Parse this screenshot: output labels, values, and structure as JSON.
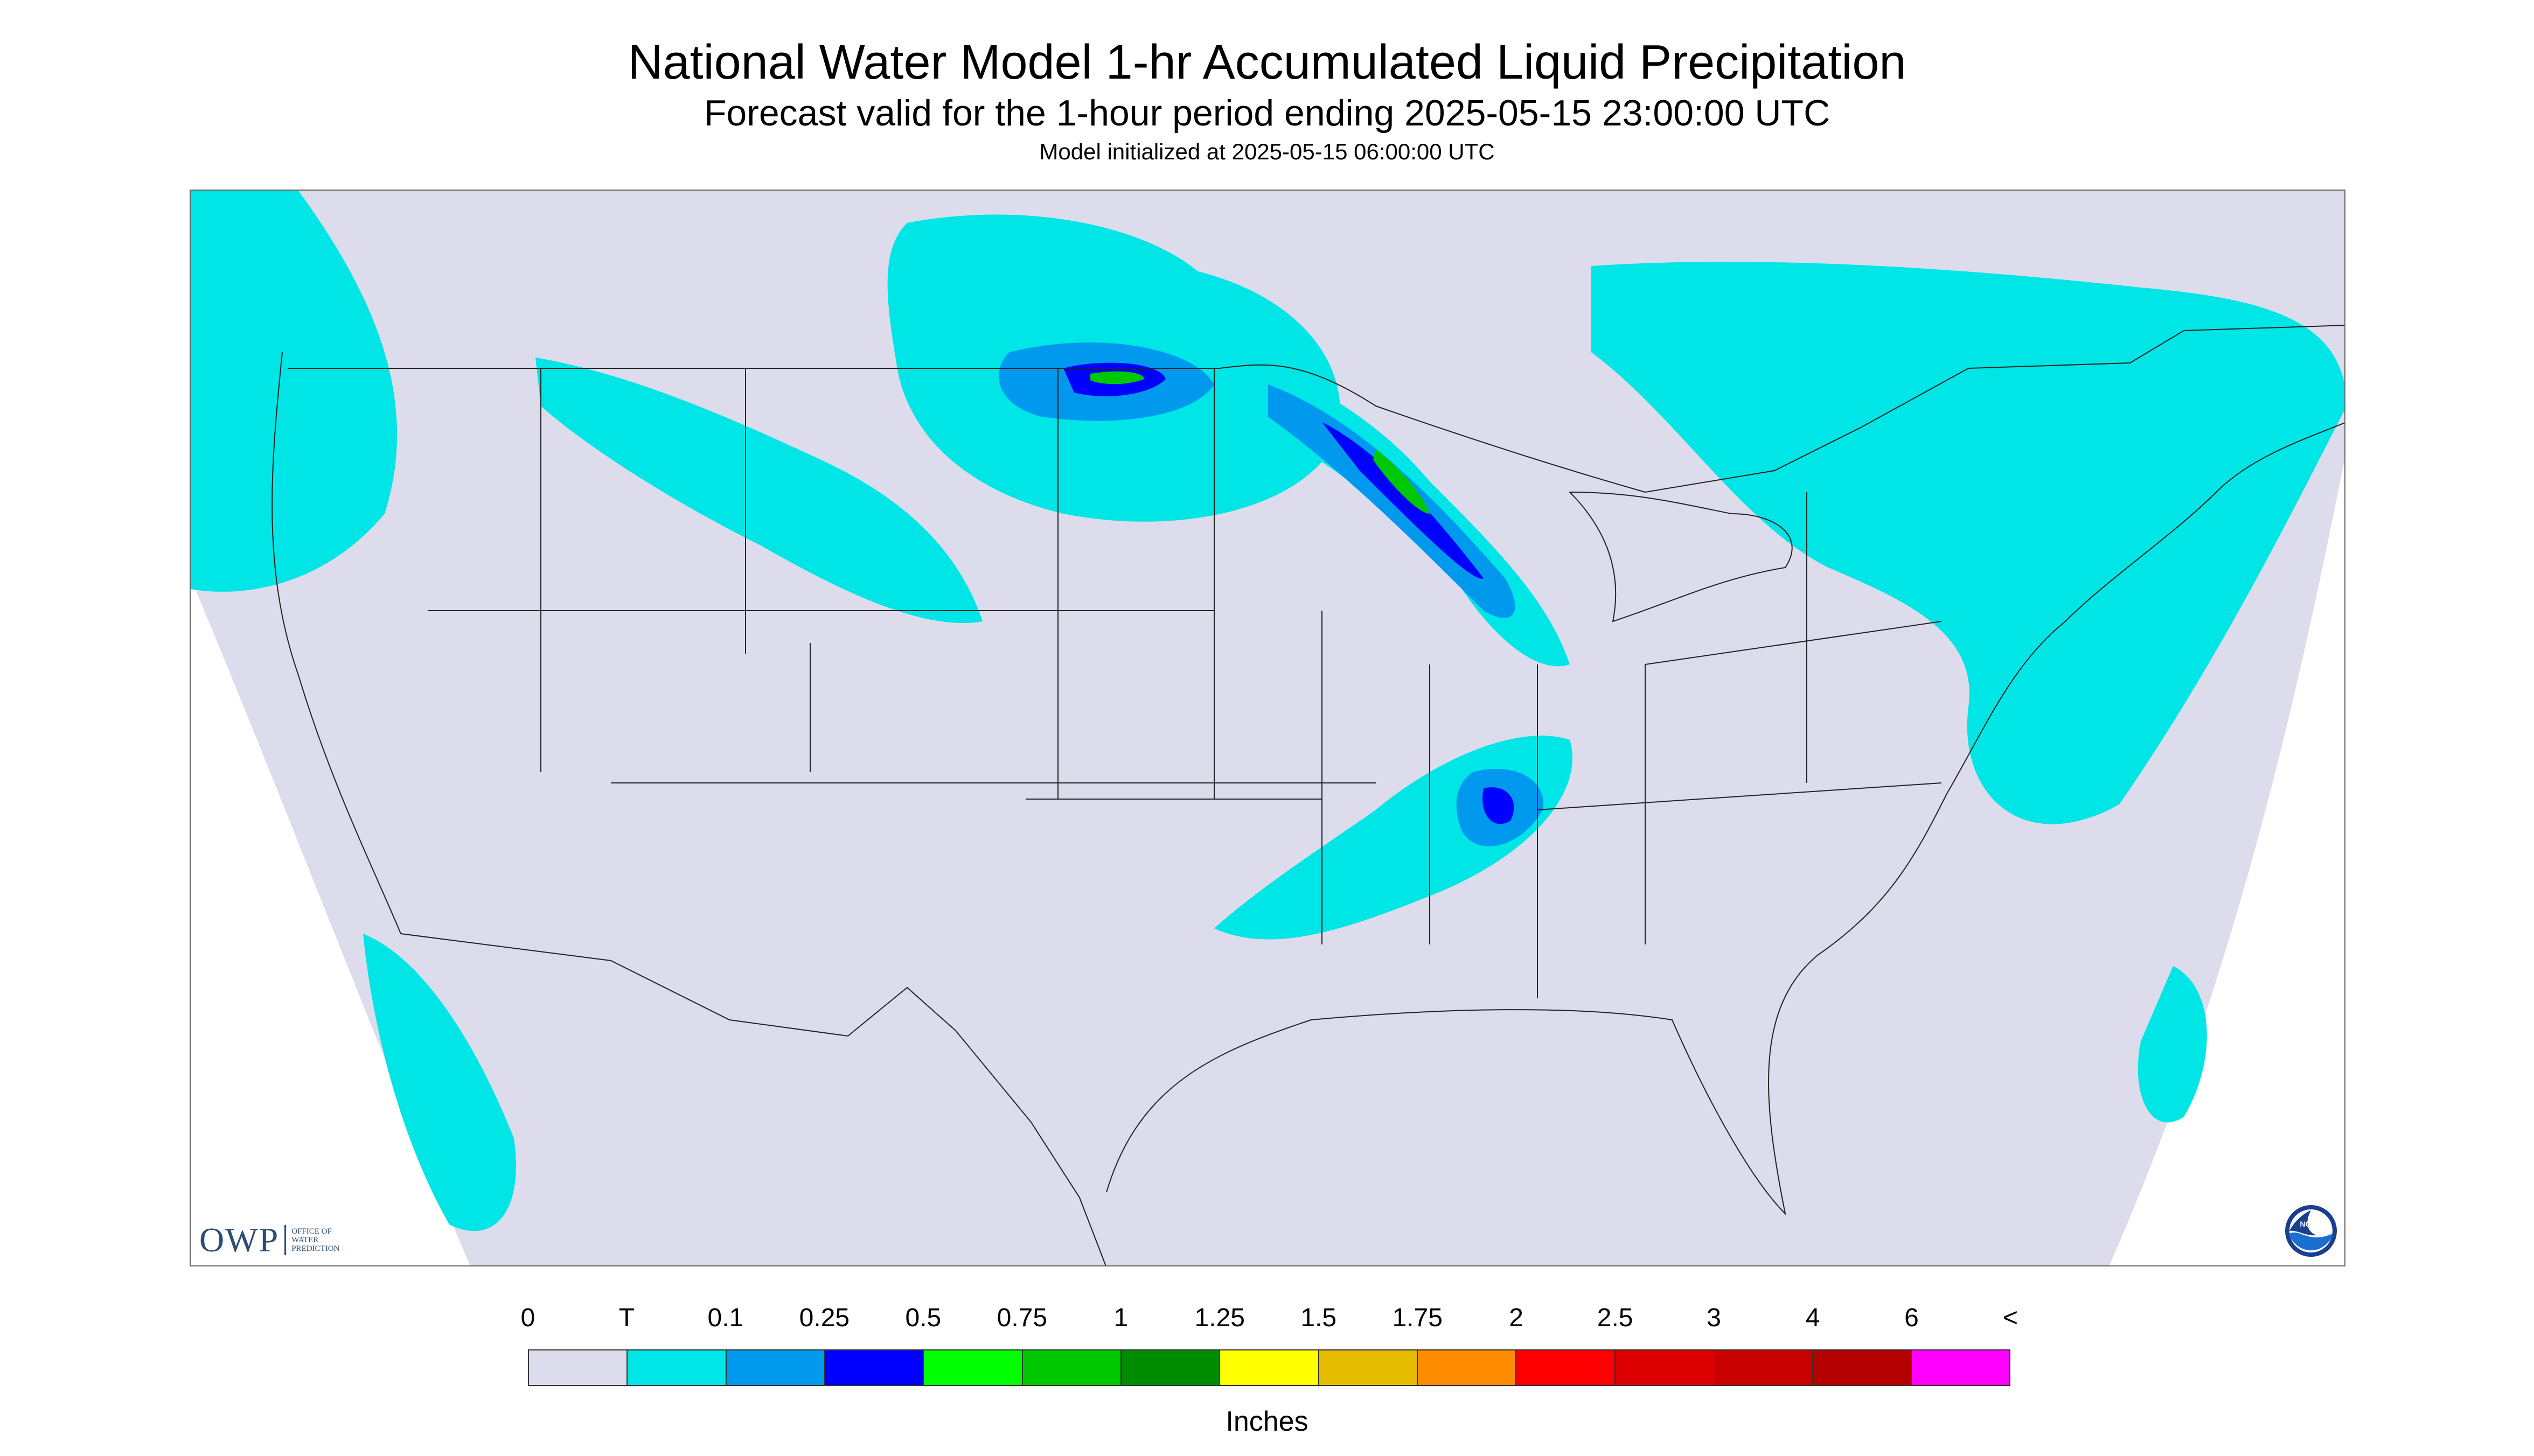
{
  "title": "National Water Model 1-hr Accumulated Liquid Precipitation",
  "subtitle": "Forecast valid for the 1-hour period ending 2025-05-15 23:00:00 UTC",
  "init_line": "Model initialized at 2025-05-15 06:00:00 UTC",
  "logo": {
    "owp_mark": "OWP",
    "owp_text_lines": [
      "OFFICE OF",
      "WATER",
      "PREDICTION"
    ],
    "noaa_label": "NOAA"
  },
  "legend": {
    "units": "Inches",
    "labels": [
      "0",
      "T",
      "0.1",
      "0.25",
      "0.5",
      "0.75",
      "1",
      "1.25",
      "1.5",
      "1.75",
      "2",
      "2.5",
      "3",
      "4",
      "6",
      "<"
    ],
    "colors": [
      "#dcdcec",
      "#00e5e5",
      "#0099ee",
      "#0000ff",
      "#00ff00",
      "#00c800",
      "#008c00",
      "#ffff00",
      "#e6bc00",
      "#ff8c00",
      "#ff0000",
      "#dc0000",
      "#c80000",
      "#b40000",
      "#ff00ff",
      "#9955cc"
    ]
  },
  "map_colors": {
    "no_data": "#ffffff",
    "zero": "#dcdcec",
    "trace": "#00e5e5",
    "light": "#0099ee",
    "moderate": "#0000ff",
    "heavy": "#00c800",
    "boundary": "#222222"
  }
}
